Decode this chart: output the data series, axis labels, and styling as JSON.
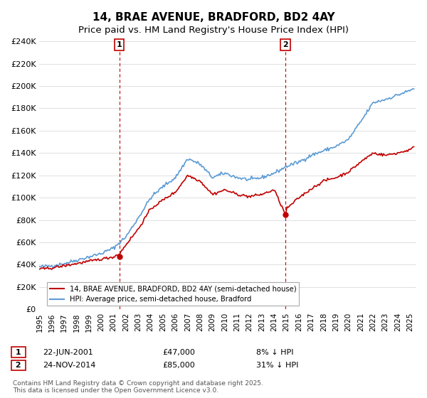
{
  "title": "14, BRAE AVENUE, BRADFORD, BD2 4AY",
  "subtitle": "Price paid vs. HM Land Registry's House Price Index (HPI)",
  "ylabel": "",
  "ylim": [
    0,
    240000
  ],
  "yticks": [
    0,
    20000,
    40000,
    60000,
    80000,
    100000,
    120000,
    140000,
    160000,
    180000,
    200000,
    220000,
    240000
  ],
  "xlim_start": 1995.0,
  "xlim_end": 2025.5,
  "hpi_color": "#5b9bd5",
  "price_color": "#c00000",
  "vline_color": "#c00000",
  "sale1_year": 2001.47,
  "sale1_price": 47000,
  "sale1_label": "1",
  "sale1_date": "22-JUN-2001",
  "sale1_hpi_pct": "8% ↓ HPI",
  "sale2_year": 2014.9,
  "sale2_price": 85000,
  "sale2_label": "2",
  "sale2_date": "24-NOV-2014",
  "sale2_hpi_pct": "31% ↓ HPI",
  "legend_price_label": "14, BRAE AVENUE, BRADFORD, BD2 4AY (semi-detached house)",
  "legend_hpi_label": "HPI: Average price, semi-detached house, Bradford",
  "footnote": "Contains HM Land Registry data © Crown copyright and database right 2025.\nThis data is licensed under the Open Government Licence v3.0.",
  "background_color": "#ffffff",
  "grid_color": "#e0e0e0",
  "title_fontsize": 11,
  "subtitle_fontsize": 9.5,
  "axis_fontsize": 8.5,
  "footnote_fontsize": 6.5
}
